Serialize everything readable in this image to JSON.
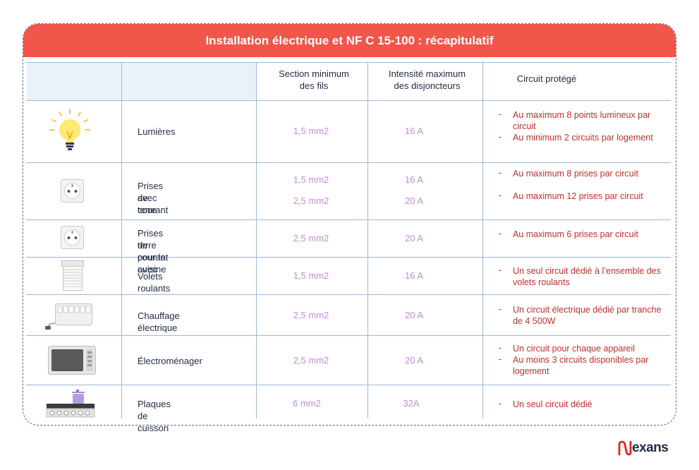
{
  "title": "Installation électrique et NF C 15-100 : récapitulatif",
  "columns": {
    "section": "Section minimum des fils",
    "section_l1": "Section minimum",
    "section_l2": "des fils",
    "intensite_l1": "Intensité maximum",
    "intensite_l2": "des disjoncteurs",
    "circuit": "Circuit protégé"
  },
  "rows": [
    {
      "label_l1": "Lumières",
      "label_l2": "",
      "icon": "lightbulb-icon",
      "section": [
        "1,5 mm2"
      ],
      "intensite": [
        "16 A"
      ],
      "notes": [
        "Au maximum 8 points lumineux par circuit",
        "Au minimum 2 circuits par logement"
      ]
    },
    {
      "label_l1": "Prises de courant",
      "label_l2": "avec terre",
      "icon": "socket-icon",
      "section": [
        "1,5 mm2",
        "2,5 mm2"
      ],
      "intensite": [
        "16 A",
        "20 A"
      ],
      "notes": [
        "Au maximum 8 prises par circuit",
        "Au maximum 12 prises par circuit"
      ]
    },
    {
      "label_l1": "Prises de courant avec",
      "label_l2": "terre pour la cuisine",
      "icon": "socket-icon",
      "section": [
        "2,5 mm2"
      ],
      "intensite": [
        "20 A"
      ],
      "notes": [
        "Au maximum 6 prises par circuit"
      ]
    },
    {
      "label_l1": "Volets roulants",
      "label_l2": "",
      "icon": "roller-shutter-icon",
      "section": [
        "1,5 mm2"
      ],
      "intensite": [
        "16 A"
      ],
      "notes": [
        "Un seul circuit dédié à l’ensemble des volets roulants"
      ]
    },
    {
      "label_l1": "Chauffage électrique",
      "label_l2": "",
      "icon": "electric-heater-icon",
      "section": [
        "2,5 mm2"
      ],
      "intensite": [
        "20 A"
      ],
      "notes": [
        "Un circuit électrique dédié par tranche de 4 500W"
      ]
    },
    {
      "label_l1": "Électroménager",
      "label_l2": "",
      "icon": "microwave-icon",
      "section": [
        "2,5 mm2"
      ],
      "intensite": [
        "20 A"
      ],
      "notes": [
        "Un circuit pour chaque appareil",
        "Au moins 3 circuits disponibles par logement"
      ]
    },
    {
      "label_l1": "Plaques de cuisson",
      "label_l2": "",
      "icon": "cooktop-icon",
      "section": [
        "6 mm2"
      ],
      "intensite": [
        "32A"
      ],
      "notes": [
        "Un seul circuit dédié"
      ]
    }
  ],
  "note_dash": "-",
  "brand": "exans",
  "colors": {
    "banner": "#f2554a",
    "value": "#c48bd8",
    "note": "#c0302a",
    "grid": "#9fb6d4"
  }
}
